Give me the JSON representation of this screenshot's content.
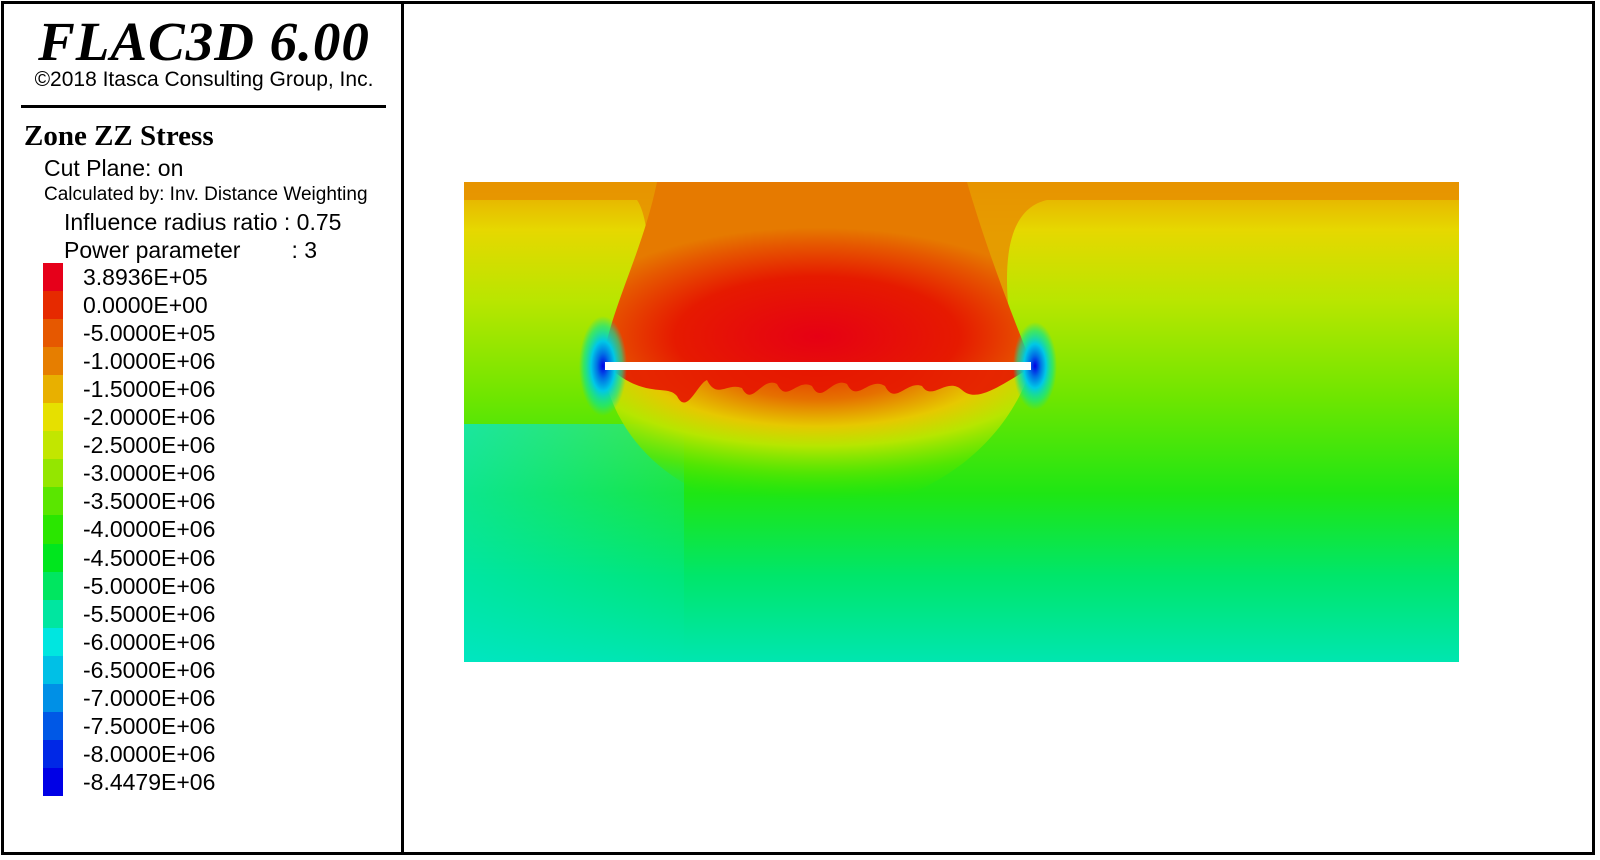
{
  "app": {
    "title": "FLAC3D 6.00",
    "copyright": "©2018 Itasca Consulting Group, Inc."
  },
  "plot": {
    "title": "Zone ZZ Stress",
    "cut_plane": "Cut Plane: on",
    "calculated_by": "Calculated by: Inv. Distance Weighting",
    "influence_radius": "Influence radius ratio : 0.75",
    "power_parameter": "Power parameter        : 3"
  },
  "legend": [
    {
      "label": "3.8936E+05",
      "color": "#e6001a"
    },
    {
      "label": "0.0000E+00",
      "color": "#e62a00"
    },
    {
      "label": "-5.0000E+05",
      "color": "#e65800"
    },
    {
      "label": "-1.0000E+06",
      "color": "#e67e00"
    },
    {
      "label": "-1.5000E+06",
      "color": "#e8b000"
    },
    {
      "label": "-2.0000E+06",
      "color": "#e6e000"
    },
    {
      "label": "-2.5000E+06",
      "color": "#c2e600"
    },
    {
      "label": "-3.0000E+06",
      "color": "#94e600"
    },
    {
      "label": "-3.5000E+06",
      "color": "#5ae600"
    },
    {
      "label": "-4.0000E+06",
      "color": "#2ae600"
    },
    {
      "label": "-4.5000E+06",
      "color": "#00e61e"
    },
    {
      "label": "-5.0000E+06",
      "color": "#00e660"
    },
    {
      "label": "-5.5000E+06",
      "color": "#00e6a0"
    },
    {
      "label": "-6.0000E+06",
      "color": "#00e6e0"
    },
    {
      "label": "-6.5000E+06",
      "color": "#00c0e6"
    },
    {
      "label": "-7.0000E+06",
      "color": "#0090e6"
    },
    {
      "label": "-7.5000E+06",
      "color": "#0058e6"
    },
    {
      "label": "-8.0000E+06",
      "color": "#0028e6"
    },
    {
      "label": "-8.4479E+06",
      "color": "#0000e6"
    }
  ]
}
